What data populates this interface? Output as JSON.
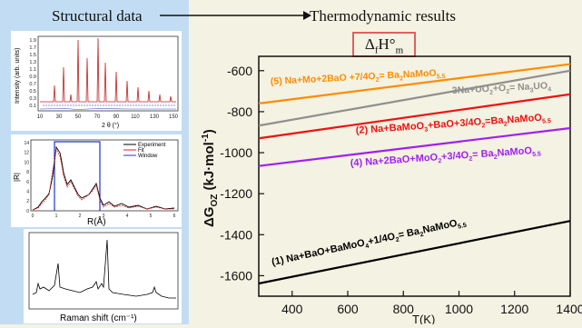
{
  "header": {
    "left_label": "Structural data",
    "right_label": "Thermodynamic results",
    "enthalpy_symbol": "Δ",
    "enthalpy_sub": "f",
    "enthalpy_main": "H°",
    "enthalpy_sub2": "m"
  },
  "xrd_plot": {
    "ylabel": "Intensity (arb. units)",
    "xlabel": "2 θ (°)",
    "yticks": [
      "1.9",
      "1.7",
      "1.5",
      "1.3",
      "1.1",
      "0.9",
      "0.7",
      "0.5",
      "0.3",
      "0.1"
    ],
    "xticks": [
      "10",
      "30",
      "50",
      "70",
      "90",
      "110",
      "130",
      "150"
    ]
  },
  "exafs_plot": {
    "ylabel": "|R|",
    "xlabel": "R(Å)",
    "yticks": [
      "14",
      "12",
      "10",
      "8",
      "6",
      "4",
      "2",
      "0"
    ],
    "xticks": [
      "0",
      "1",
      "2",
      "3",
      "4",
      "5",
      "6"
    ],
    "legend": [
      "Experiment",
      "Fit",
      "Window"
    ],
    "colors": {
      "experiment": "#000000",
      "fit": "#dd2222",
      "window": "#2233cc"
    }
  },
  "raman_plot": {
    "xlabel": "Raman shift (cm⁻¹)"
  },
  "chart_data": {
    "type": "line",
    "title": "",
    "xlabel": "T(K)",
    "ylabel": "ΔG_OZ (kJ·mol⁻¹)",
    "xlim": [
      280,
      1400
    ],
    "ylim": [
      -1700,
      -530
    ],
    "xticks": [
      400,
      600,
      800,
      1000,
      1200,
      1400
    ],
    "yticks": [
      -600,
      -800,
      -1000,
      -1200,
      -1400,
      -1600
    ],
    "grid": false,
    "series": [
      {
        "label": "(5) Na+Mo+2BaO +7/4O2= Ba2NaMoO5.5",
        "color": "#ff8c00",
        "x": [
          280,
          1400
        ],
        "y": [
          -760,
          -568
        ]
      },
      {
        "label": "3Na+UO2+O2= Na3UO4",
        "color": "#8f8f8f",
        "x": [
          280,
          1400
        ],
        "y": [
          -868,
          -600
        ]
      },
      {
        "label": "(2) Na+BaMoO3+BaO+3/4O2= Ba2NaMoO5.5",
        "color": "#ee1111",
        "x": [
          280,
          1400
        ],
        "y": [
          -930,
          -715
        ]
      },
      {
        "label": "(4) Na+2BaO+MoO2+3/4O2= Ba2NaMoO5.5",
        "color": "#a020f0",
        "x": [
          280,
          1400
        ],
        "y": [
          -1065,
          -880
        ]
      },
      {
        "label": "(1) Na+BaO+BaMoO4+1/4O2= Ba2NaMoO5.5",
        "color": "#000000",
        "x": [
          280,
          1400
        ],
        "y": [
          -1638,
          -1333
        ]
      }
    ]
  }
}
